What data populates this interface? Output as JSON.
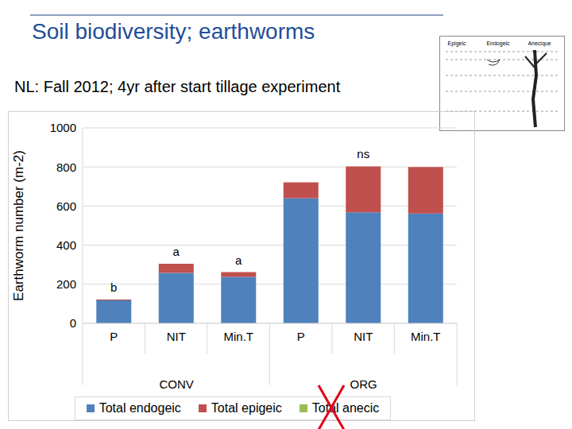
{
  "chart_data": {
    "type": "bar",
    "title": "Soil biodiversity; earthworms",
    "subtitle": "NL: Fall 2012; 4yr after start tillage experiment",
    "y_label": "Earthworm number (m-2)",
    "categories": [
      "P",
      "NIT",
      "Min.T",
      "P",
      "NIT",
      "Min.T"
    ],
    "group_labels": [
      "CONV",
      "CONV",
      "CONV",
      "ORG",
      "ORG",
      "ORG"
    ],
    "annotations": [
      "b",
      "a",
      "a",
      null,
      "ns",
      null
    ],
    "series": [
      {
        "name": "Total endogeic",
        "color": "#4f81bd",
        "values": [
          118,
          258,
          238,
          640,
          568,
          562
        ]
      },
      {
        "name": "Total epigeic",
        "color": "#c0504d",
        "values": [
          4,
          47,
          24,
          82,
          235,
          238
        ]
      },
      {
        "name": "Total anecic",
        "color": "#9bbb59",
        "values": [
          0,
          0,
          0,
          0,
          0,
          0
        ]
      }
    ],
    "ylim": [
      0,
      1000
    ],
    "yticks": [
      0,
      200,
      400,
      600,
      800,
      1000
    ],
    "grid": true,
    "stacked": true,
    "legend": "bottom",
    "inset_labels": [
      "Epigeic",
      "Endogeic",
      "Anecique"
    ]
  }
}
